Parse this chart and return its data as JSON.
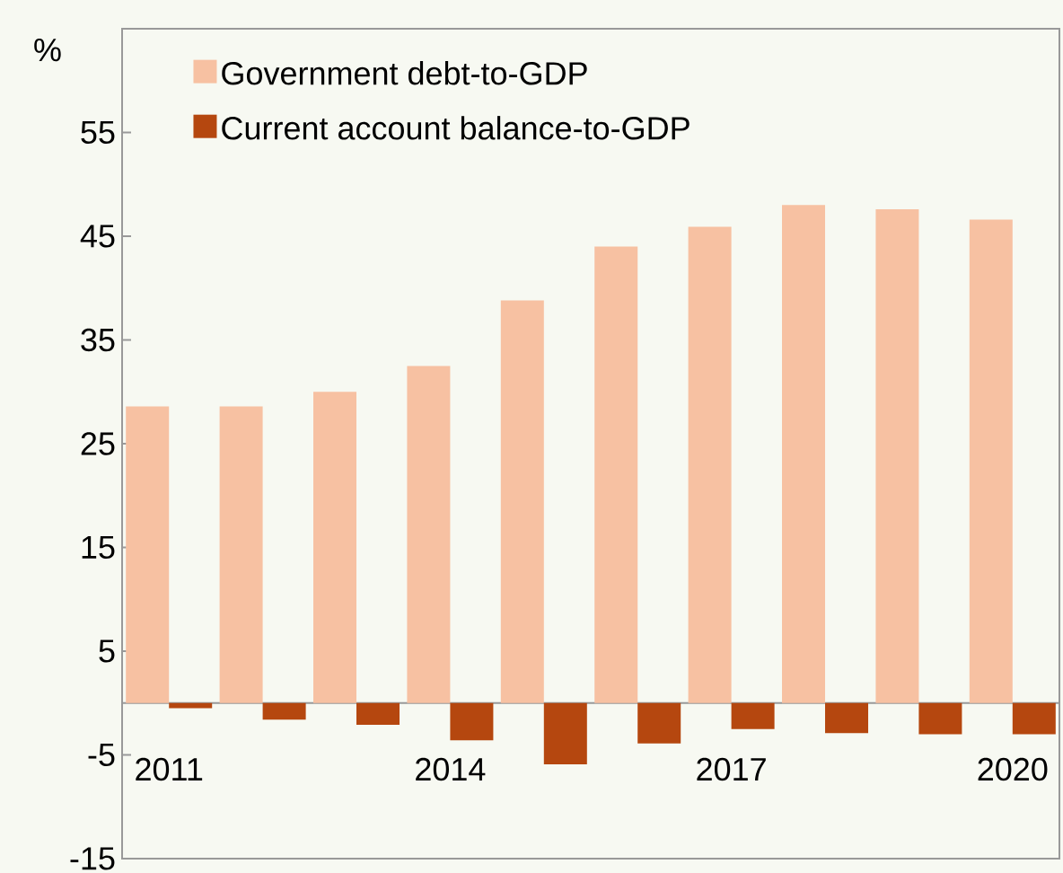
{
  "chart_data": {
    "type": "bar",
    "ylabel": "%",
    "categories": [
      "2011",
      null,
      null,
      "2014",
      null,
      null,
      "2017",
      null,
      null,
      "2020"
    ],
    "series": [
      {
        "name": "Government debt-to-GDP",
        "color": "#f7c1a2",
        "values": [
          28.6,
          28.6,
          30.0,
          32.5,
          38.8,
          44.0,
          45.9,
          48.0,
          47.6,
          46.6
        ]
      },
      {
        "name": "Current account balance-to-GDP",
        "color": "#b5470f",
        "values": [
          -0.5,
          -1.6,
          -2.1,
          -3.6,
          -5.9,
          -3.9,
          -2.5,
          -2.9,
          -3.0,
          -3.0
        ]
      }
    ],
    "ylim": [
      -15,
      65
    ],
    "yticks": [
      -15,
      -5,
      5,
      15,
      25,
      35,
      45,
      55
    ],
    "legend": "top left",
    "grid": false
  }
}
